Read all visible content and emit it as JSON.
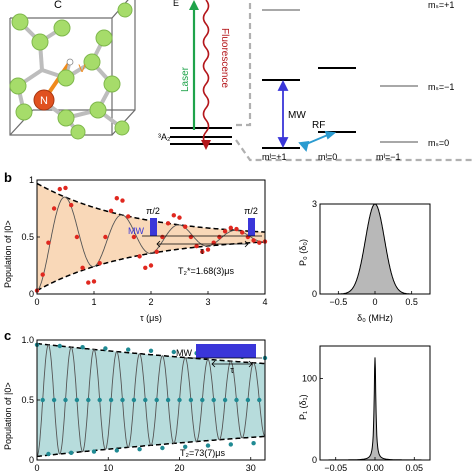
{
  "colors": {
    "laser": "#1fa34a",
    "fluorescence": "#b4161b",
    "mw": "#3a36d9",
    "rf": "#2b9bd0",
    "orange_fill": "#f9d8b8",
    "teal_fill": "#b7dcdc",
    "red_dot": "#e0281f",
    "teal_dot": "#1f8a93",
    "nitrogen": "#e0511f",
    "carbon": "#a6dc6a",
    "hist_fill": "#b8b8b8"
  },
  "panel_a": {
    "atom_C": "C",
    "atom_V": "V",
    "atom_N": "N",
    "label_E": "E",
    "laser": "Laser",
    "fluorescence": "Fluorescence",
    "ground": "³A₂",
    "mw": "MW",
    "rf": "RF",
    "mi_p1": "mᴵ=+1",
    "mi_0": "mᴵ=0",
    "mi_m1": "mᴵ=−1",
    "ms_top": "mₛ=+1",
    "ms_m1": "mₛ=−1",
    "ms_0": "mₛ=0"
  },
  "panel_b_label": "b",
  "panel_c_label": "c",
  "chart_data": [
    {
      "type": "line",
      "panel": "b-left",
      "ylabel": "Population of |0>",
      "xlabel": "τ (μs)",
      "xlim": [
        0,
        4
      ],
      "ylim": [
        0,
        1
      ],
      "xticks": [
        "0",
        "1",
        "2",
        "3",
        "4"
      ],
      "yticks": [
        "0",
        "0.5",
        "1"
      ],
      "annotation": "T₂*=1.68(3)μs",
      "pulse_labels": [
        "MW",
        "π/2",
        "π/2",
        "τ"
      ],
      "model": {
        "offset": 0.5,
        "amplitude": 0.47,
        "period_us": 1.0,
        "T2_us": 1.68
      },
      "series": [
        {
          "x": [
            0,
            0.1,
            0.2,
            0.3,
            0.4,
            0.5,
            0.6,
            0.7,
            0.8,
            0.9,
            1.0,
            1.1,
            1.2,
            1.3,
            1.4,
            1.5,
            1.6,
            1.7,
            1.8,
            1.9,
            2.0,
            2.1,
            2.2,
            2.3,
            2.4,
            2.5,
            2.6,
            2.7,
            2.8,
            2.9,
            3.0,
            3.1,
            3.2,
            3.3,
            3.4,
            3.5,
            3.6,
            3.7,
            3.8,
            3.9,
            4.0
          ],
          "y": [
            0.03,
            0.17,
            0.45,
            0.75,
            0.92,
            0.93,
            0.78,
            0.5,
            0.23,
            0.1,
            0.11,
            0.27,
            0.5,
            0.73,
            0.84,
            0.82,
            0.68,
            0.5,
            0.33,
            0.23,
            0.25,
            0.37,
            0.5,
            0.62,
            0.69,
            0.67,
            0.59,
            0.5,
            0.42,
            0.37,
            0.39,
            0.45,
            0.5,
            0.55,
            0.58,
            0.57,
            0.54,
            0.5,
            0.47,
            0.45,
            0.46
          ]
        }
      ]
    },
    {
      "type": "area",
      "panel": "b-right",
      "ylabel": "P₀ (δ₀)",
      "xlabel": "δ₀ (MHz)",
      "xlim": [
        -0.75,
        0.75
      ],
      "ylim": [
        0,
        3
      ],
      "xticks": [
        "−0.5",
        "0",
        "0.5"
      ],
      "yticks": [
        "0",
        "3"
      ],
      "model": {
        "center": 0,
        "sigma": 0.13,
        "peak": 3
      }
    },
    {
      "type": "line",
      "panel": "c-left",
      "ylabel": "Population of |0>",
      "xlabel": "",
      "xlim": [
        0,
        32
      ],
      "ylim": [
        0,
        1
      ],
      "xticks": [
        "0",
        "10",
        "20",
        "30"
      ],
      "yticks": [
        "0",
        "0.5",
        "1.0"
      ],
      "annotation": "T₂=73(7)μs",
      "pulse_labels": [
        "MW",
        "τ"
      ],
      "model": {
        "offset": 0.5,
        "amplitude": 0.47,
        "period_us": 3.2,
        "T2_us": 73
      },
      "series": [
        {
          "x": [
            0,
            0.8,
            1.6,
            2.4,
            3.2,
            4.0,
            4.8,
            5.6,
            6.4,
            7.2,
            8.0,
            8.8,
            9.6,
            10.4,
            11.2,
            12.0,
            12.8,
            13.6,
            14.4,
            15.2,
            16.0,
            16.8,
            17.6,
            18.4,
            19.2,
            20.0,
            20.8,
            21.6,
            22.4,
            23.2,
            24.0,
            24.8,
            25.6,
            26.4,
            27.2,
            28.0,
            28.8,
            29.6,
            30.4,
            31.2,
            32.0
          ],
          "y": [
            0.96,
            0.5,
            0.05,
            0.5,
            0.95,
            0.5,
            0.06,
            0.5,
            0.94,
            0.5,
            0.07,
            0.5,
            0.93,
            0.5,
            0.08,
            0.5,
            0.92,
            0.5,
            0.09,
            0.5,
            0.91,
            0.5,
            0.1,
            0.5,
            0.9,
            0.5,
            0.11,
            0.5,
            0.89,
            0.5,
            0.12,
            0.5,
            0.87,
            0.5,
            0.13,
            0.5,
            0.86,
            0.5,
            0.14,
            0.5,
            0.85
          ]
        }
      ]
    },
    {
      "type": "area",
      "panel": "c-right",
      "ylabel": "P₁ (δ₁)",
      "xlabel": "",
      "xlim": [
        -0.07,
        0.07
      ],
      "ylim": [
        0,
        140
      ],
      "xticks": [
        "−0.05",
        "0.00",
        "0.05"
      ],
      "yticks": [
        "0",
        "100"
      ],
      "model": {
        "center": 0,
        "gamma": 0.0013,
        "peak": 126
      }
    }
  ]
}
